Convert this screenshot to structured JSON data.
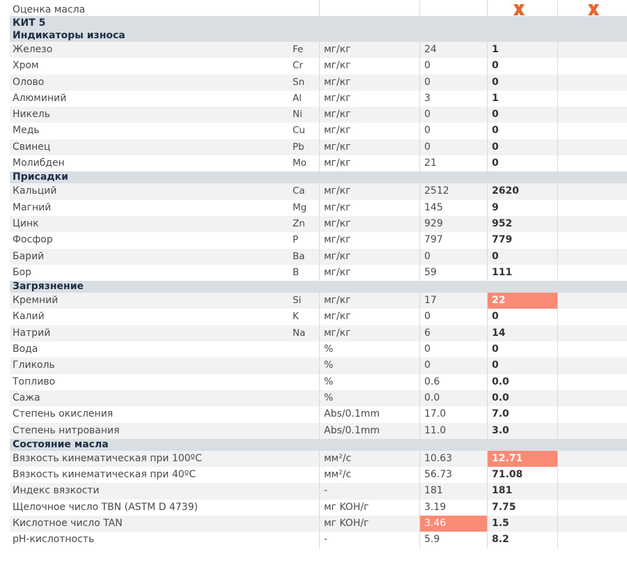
{
  "colors": {
    "header_bg": "#d9dee3",
    "header_text": "#1b2e45",
    "highlight": "#fa8a75",
    "x_icon": "#e8672d"
  },
  "rating_row": {
    "label": "Оценка масла",
    "icon1": "x-icon",
    "icon2": "x-icon"
  },
  "kit_label": "КИТ 5",
  "sections": [
    {
      "title": "Индикаторы износа",
      "rows": [
        {
          "name": "Железо",
          "sym": "Fe",
          "unit": "мг/кг",
          "v1": "24",
          "v2": "1",
          "hl": ""
        },
        {
          "name": "Хром",
          "sym": "Cr",
          "unit": "мг/кг",
          "v1": "0",
          "v2": "0",
          "hl": ""
        },
        {
          "name": "Олово",
          "sym": "Sn",
          "unit": "мг/кг",
          "v1": "0",
          "v2": "0",
          "hl": ""
        },
        {
          "name": "Алюминий",
          "sym": "Al",
          "unit": "мг/кг",
          "v1": "3",
          "v2": "1",
          "hl": ""
        },
        {
          "name": "Никель",
          "sym": "Ni",
          "unit": "мг/кг",
          "v1": "0",
          "v2": "0",
          "hl": ""
        },
        {
          "name": "Медь",
          "sym": "Cu",
          "unit": "мг/кг",
          "v1": "0",
          "v2": "0",
          "hl": ""
        },
        {
          "name": "Свинец",
          "sym": "Pb",
          "unit": "мг/кг",
          "v1": "0",
          "v2": "0",
          "hl": ""
        },
        {
          "name": "Молибден",
          "sym": "Mo",
          "unit": "мг/кг",
          "v1": "21",
          "v2": "0",
          "hl": ""
        }
      ]
    },
    {
      "title": "Присадки",
      "rows": [
        {
          "name": "Кальций",
          "sym": "Ca",
          "unit": "мг/кг",
          "v1": "2512",
          "v2": "2620",
          "hl": ""
        },
        {
          "name": "Магний",
          "sym": "Mg",
          "unit": "мг/кг",
          "v1": "145",
          "v2": "9",
          "hl": ""
        },
        {
          "name": "Цинк",
          "sym": "Zn",
          "unit": "мг/кг",
          "v1": "929",
          "v2": "952",
          "hl": ""
        },
        {
          "name": "Фосфор",
          "sym": "P",
          "unit": "мг/кг",
          "v1": "797",
          "v2": "779",
          "hl": ""
        },
        {
          "name": "Барий",
          "sym": "Ba",
          "unit": "мг/кг",
          "v1": "0",
          "v2": "0",
          "hl": ""
        },
        {
          "name": "Бор",
          "sym": "B",
          "unit": "мг/кг",
          "v1": "59",
          "v2": "111",
          "hl": ""
        }
      ]
    },
    {
      "title": "Загрязнение",
      "rows": [
        {
          "name": "Кремний",
          "sym": "Si",
          "unit": "мг/кг",
          "v1": "17",
          "v2": "22",
          "hl": "v2"
        },
        {
          "name": "Калий",
          "sym": "K",
          "unit": "мг/кг",
          "v1": "0",
          "v2": "0",
          "hl": ""
        },
        {
          "name": "Натрий",
          "sym": "Na",
          "unit": "мг/кг",
          "v1": "6",
          "v2": "14",
          "hl": ""
        },
        {
          "name": "Вода",
          "sym": "",
          "unit": "%",
          "v1": "0",
          "v2": "0",
          "hl": ""
        },
        {
          "name": "Гликоль",
          "sym": "",
          "unit": "%",
          "v1": "0",
          "v2": "0",
          "hl": ""
        },
        {
          "name": "Топливо",
          "sym": "",
          "unit": "%",
          "v1": "0.6",
          "v2": "0.0",
          "hl": ""
        },
        {
          "name": "Сажа",
          "sym": "",
          "unit": "%",
          "v1": "0.0",
          "v2": "0.0",
          "hl": ""
        },
        {
          "name": "Степень окисления",
          "sym": "",
          "unit": "Abs/0.1mm",
          "v1": "17.0",
          "v2": "7.0",
          "hl": ""
        },
        {
          "name": "Степень нитрования",
          "sym": "",
          "unit": "Abs/0.1mm",
          "v1": "11.0",
          "v2": "3.0",
          "hl": ""
        }
      ]
    },
    {
      "title": "Состояние масла",
      "rows": [
        {
          "name": "Вязкость кинематическая при 100ºC",
          "sym": "",
          "unit": "мм²/с",
          "v1": "10.63",
          "v2": "12.71",
          "hl": "v2"
        },
        {
          "name": "Вязкость кинематическая при 40ºC",
          "sym": "",
          "unit": "мм²/с",
          "v1": "56.73",
          "v2": "71.08",
          "hl": ""
        },
        {
          "name": "Индекс вязкости",
          "sym": "",
          "unit": "-",
          "v1": "181",
          "v2": "181",
          "hl": ""
        },
        {
          "name": "Щелочное число TBN (ASTM D 4739)",
          "sym": "",
          "unit": "мг KOH/г",
          "v1": "3.19",
          "v2": "7.75",
          "hl": ""
        },
        {
          "name": "Кислотное число TAN",
          "sym": "",
          "unit": "мг KOH/г",
          "v1": "3.46",
          "v2": "1.5",
          "hl": "v1"
        },
        {
          "name": "pH-кислотность",
          "sym": "",
          "unit": "-",
          "v1": "5.9",
          "v2": "8.2",
          "hl": ""
        }
      ]
    }
  ]
}
